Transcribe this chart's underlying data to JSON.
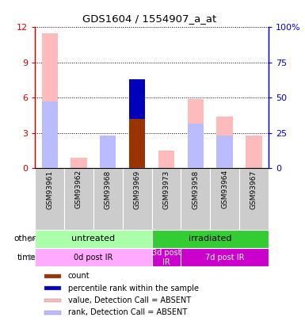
{
  "title": "GDS1604 / 1554907_a_at",
  "samples": [
    "GSM93961",
    "GSM93962",
    "GSM93968",
    "GSM93969",
    "GSM93973",
    "GSM93958",
    "GSM93964",
    "GSM93967"
  ],
  "value_absent": [
    11.5,
    0.9,
    2.8,
    0.0,
    1.5,
    5.9,
    4.4,
    2.8
  ],
  "rank_absent_light": [
    5.7,
    0.0,
    2.8,
    0.0,
    0.0,
    3.8,
    2.8,
    0.0
  ],
  "count_present": [
    0.0,
    0.0,
    0.0,
    4.2,
    0.0,
    0.0,
    0.0,
    0.0
  ],
  "percentile_bar": [
    0.0,
    0.0,
    0.0,
    3.4,
    0.0,
    0.0,
    0.0,
    0.0
  ],
  "ylim_left": [
    0,
    12
  ],
  "ylim_right": [
    0,
    100
  ],
  "yticks_left": [
    0,
    3,
    6,
    9,
    12
  ],
  "yticks_right": [
    0,
    25,
    50,
    75,
    100
  ],
  "ytick_labels_left": [
    "0",
    "3",
    "6",
    "9",
    "12"
  ],
  "ytick_labels_right": [
    "0",
    "25",
    "50",
    "75",
    "100%"
  ],
  "left_axis_color": "#cc0000",
  "right_axis_color": "#0000cc",
  "color_count": "#993300",
  "color_percentile": "#0000bb",
  "color_value_absent": "#ffbbbb",
  "color_rank_absent": "#bbbbff",
  "group_other": [
    {
      "label": "untreated",
      "start": 0,
      "end": 4,
      "color": "#aaffaa"
    },
    {
      "label": "irradiated",
      "start": 4,
      "end": 8,
      "color": "#33cc33"
    }
  ],
  "group_time": [
    {
      "label": "0d post IR",
      "start": 0,
      "end": 4,
      "color": "#ffaaff"
    },
    {
      "label": "3d post\nIR",
      "start": 4,
      "end": 5,
      "color": "#cc00cc"
    },
    {
      "label": "7d post IR",
      "start": 5,
      "end": 8,
      "color": "#cc00cc"
    }
  ],
  "legend_items": [
    {
      "label": "count",
      "color": "#993300"
    },
    {
      "label": "percentile rank within the sample",
      "color": "#0000bb"
    },
    {
      "label": "value, Detection Call = ABSENT",
      "color": "#ffbbbb"
    },
    {
      "label": "rank, Detection Call = ABSENT",
      "color": "#bbbbff"
    }
  ],
  "bar_width": 0.55,
  "figsize": [
    3.85,
    4.05
  ],
  "dpi": 100
}
